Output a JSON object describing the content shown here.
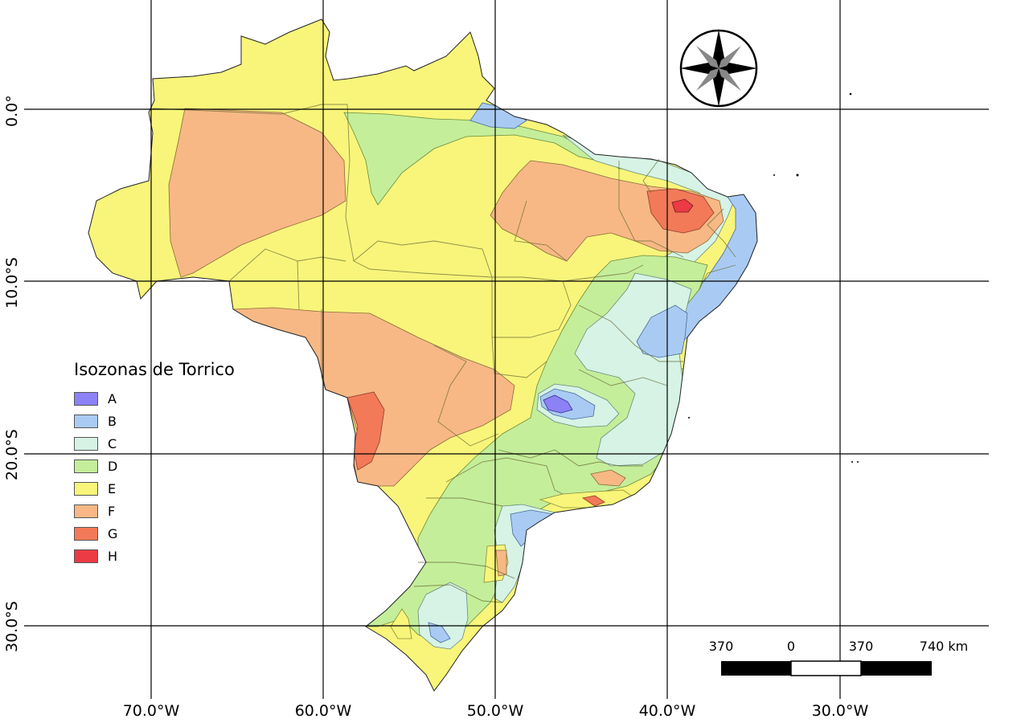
{
  "map": {
    "legend": {
      "title": "Isozonas de Torrico",
      "items": [
        {
          "label": "A",
          "color": "#8c82f5"
        },
        {
          "label": "B",
          "color": "#a9cbf3"
        },
        {
          "label": "C",
          "color": "#d6f3e6"
        },
        {
          "label": "D",
          "color": "#c4ee9a"
        },
        {
          "label": "E",
          "color": "#f8f57a"
        },
        {
          "label": "F",
          "color": "#f7b885"
        },
        {
          "label": "G",
          "color": "#f37a58"
        },
        {
          "label": "H",
          "color": "#ec3b44"
        }
      ]
    },
    "longitude_labels": [
      "70.0°W",
      "60.0°W",
      "50.0°W",
      "40.0°W",
      "30.0°W"
    ],
    "latitude_labels": [
      "0.0°",
      "10.0°S",
      "20.0°S",
      "30.0°S"
    ],
    "scale_bar": {
      "labels": [
        "370",
        "0",
        "370",
        "740 km"
      ]
    },
    "north_arrow": {
      "icon": "compass-rose-icon"
    }
  }
}
